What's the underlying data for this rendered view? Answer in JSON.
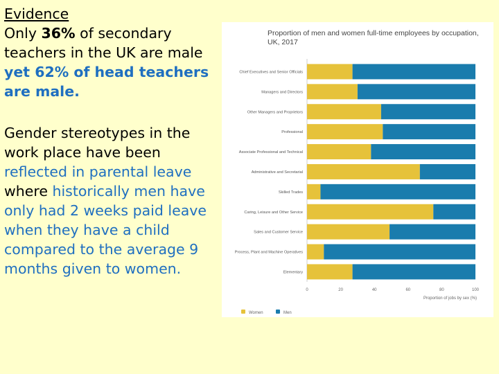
{
  "text": {
    "heading": "Evidence",
    "p1_a": "Only ",
    "p1_pct": "36%",
    "p1_b": " of secondary teachers in the UK are male ",
    "p1_c": "yet 62% of head teachers are male.",
    "p2_a": "Gender stereotypes in the work place have been ",
    "p2_b": "reflected in parental leave",
    "p2_c": " where ",
    "p2_d": "historically men have only had 2 weeks paid leave when they have a child compared to the average 9 months given to women."
  },
  "colors": {
    "women": "#e6c23a",
    "men": "#1a7cad",
    "highlight": "#1f6fc0",
    "background": "#ffffcc"
  },
  "chart_data": {
    "type": "bar",
    "orientation": "horizontal",
    "stacked": true,
    "title": "Proportion of men and women full-time employees by occupation, UK, 2017",
    "xlabel": "Proportion of jobs by sex (%)",
    "xlim": [
      0,
      100
    ],
    "xticks": [
      0,
      20,
      40,
      60,
      80,
      100
    ],
    "legend_position": "bottom-left",
    "categories": [
      "Chief Executives and Senior Officials",
      "Managers and Directors",
      "Other Managers and Proprietors",
      "Professional",
      "Associate Professional and Technical",
      "Administrative and Secretarial",
      "Skilled Trades",
      "Caring, Leisure and Other Service",
      "Sales and Customer Service",
      "Process, Plant and Machine Operatives",
      "Elementary"
    ],
    "series": [
      {
        "name": "Women",
        "values": [
          27,
          30,
          44,
          45,
          38,
          67,
          8,
          75,
          49,
          10,
          27
        ]
      },
      {
        "name": "Men",
        "values": [
          73,
          70,
          56,
          55,
          62,
          33,
          92,
          25,
          51,
          90,
          73
        ]
      }
    ]
  }
}
